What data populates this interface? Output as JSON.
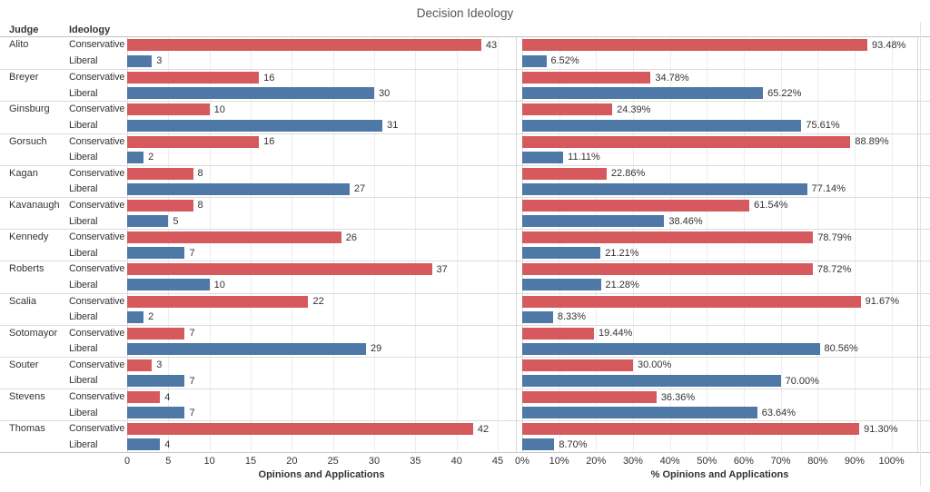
{
  "title": "Decision Ideology",
  "columns": {
    "judge": "Judge",
    "ideology": "Ideology"
  },
  "ideology_labels": {
    "conservative": "Conservative",
    "liberal": "Liberal"
  },
  "colors": {
    "conservative_bar": "#d6595d",
    "liberal_bar": "#4e79a7",
    "gridline": "#ededed",
    "row_separator": "#dcdcdc",
    "title_text": "#555555",
    "label_text": "#333333"
  },
  "chart_data": {
    "type": "bar",
    "orientation": "horizontal",
    "grid": true,
    "panels": [
      {
        "name": "counts",
        "axis_title": "Opinions and Applications",
        "ticks": [
          0,
          5,
          10,
          15,
          20,
          25,
          30,
          35,
          40,
          45
        ],
        "tick_labels": [
          "0",
          "5",
          "10",
          "15",
          "20",
          "25",
          "30",
          "35",
          "40",
          "45"
        ],
        "axis_max": 47.2
      },
      {
        "name": "percent",
        "axis_title": "% Opinions and Applications",
        "ticks": [
          0,
          10,
          20,
          30,
          40,
          50,
          60,
          70,
          80,
          90,
          100
        ],
        "tick_labels": [
          "0%",
          "10%",
          "20%",
          "30%",
          "40%",
          "50%",
          "60%",
          "70%",
          "80%",
          "90%",
          "100%"
        ],
        "axis_max": 107
      }
    ],
    "judges": [
      {
        "name": "Alito",
        "conservative": {
          "count": 43,
          "count_label": "43",
          "pct": 93.48,
          "pct_label": "93.48%"
        },
        "liberal": {
          "count": 3,
          "count_label": "3",
          "pct": 6.52,
          "pct_label": "6.52%"
        }
      },
      {
        "name": "Breyer",
        "conservative": {
          "count": 16,
          "count_label": "16",
          "pct": 34.78,
          "pct_label": "34.78%"
        },
        "liberal": {
          "count": 30,
          "count_label": "30",
          "pct": 65.22,
          "pct_label": "65.22%"
        }
      },
      {
        "name": "Ginsburg",
        "conservative": {
          "count": 10,
          "count_label": "10",
          "pct": 24.39,
          "pct_label": "24.39%"
        },
        "liberal": {
          "count": 31,
          "count_label": "31",
          "pct": 75.61,
          "pct_label": "75.61%"
        }
      },
      {
        "name": "Gorsuch",
        "conservative": {
          "count": 16,
          "count_label": "16",
          "pct": 88.89,
          "pct_label": "88.89%"
        },
        "liberal": {
          "count": 2,
          "count_label": "2",
          "pct": 11.11,
          "pct_label": "11.11%"
        }
      },
      {
        "name": "Kagan",
        "conservative": {
          "count": 8,
          "count_label": "8",
          "pct": 22.86,
          "pct_label": "22.86%"
        },
        "liberal": {
          "count": 27,
          "count_label": "27",
          "pct": 77.14,
          "pct_label": "77.14%"
        }
      },
      {
        "name": "Kavanaugh",
        "conservative": {
          "count": 8,
          "count_label": "8",
          "pct": 61.54,
          "pct_label": "61.54%"
        },
        "liberal": {
          "count": 5,
          "count_label": "5",
          "pct": 38.46,
          "pct_label": "38.46%"
        }
      },
      {
        "name": "Kennedy",
        "conservative": {
          "count": 26,
          "count_label": "26",
          "pct": 78.79,
          "pct_label": "78.79%"
        },
        "liberal": {
          "count": 7,
          "count_label": "7",
          "pct": 21.21,
          "pct_label": "21.21%"
        }
      },
      {
        "name": "Roberts",
        "conservative": {
          "count": 37,
          "count_label": "37",
          "pct": 78.72,
          "pct_label": "78.72%"
        },
        "liberal": {
          "count": 10,
          "count_label": "10",
          "pct": 21.28,
          "pct_label": "21.28%"
        }
      },
      {
        "name": "Scalia",
        "conservative": {
          "count": 22,
          "count_label": "22",
          "pct": 91.67,
          "pct_label": "91.67%"
        },
        "liberal": {
          "count": 2,
          "count_label": "2",
          "pct": 8.33,
          "pct_label": "8.33%"
        }
      },
      {
        "name": "Sotomayor",
        "conservative": {
          "count": 7,
          "count_label": "7",
          "pct": 19.44,
          "pct_label": "19.44%"
        },
        "liberal": {
          "count": 29,
          "count_label": "29",
          "pct": 80.56,
          "pct_label": "80.56%"
        }
      },
      {
        "name": "Souter",
        "conservative": {
          "count": 3,
          "count_label": "3",
          "pct": 30.0,
          "pct_label": "30.00%"
        },
        "liberal": {
          "count": 7,
          "count_label": "7",
          "pct": 70.0,
          "pct_label": "70.00%"
        }
      },
      {
        "name": "Stevens",
        "conservative": {
          "count": 4,
          "count_label": "4",
          "pct": 36.36,
          "pct_label": "36.36%"
        },
        "liberal": {
          "count": 7,
          "count_label": "7",
          "pct": 63.64,
          "pct_label": "63.64%"
        }
      },
      {
        "name": "Thomas",
        "conservative": {
          "count": 42,
          "count_label": "42",
          "pct": 91.3,
          "pct_label": "91.30%"
        },
        "liberal": {
          "count": 4,
          "count_label": "4",
          "pct": 8.7,
          "pct_label": "8.70%"
        }
      }
    ]
  }
}
